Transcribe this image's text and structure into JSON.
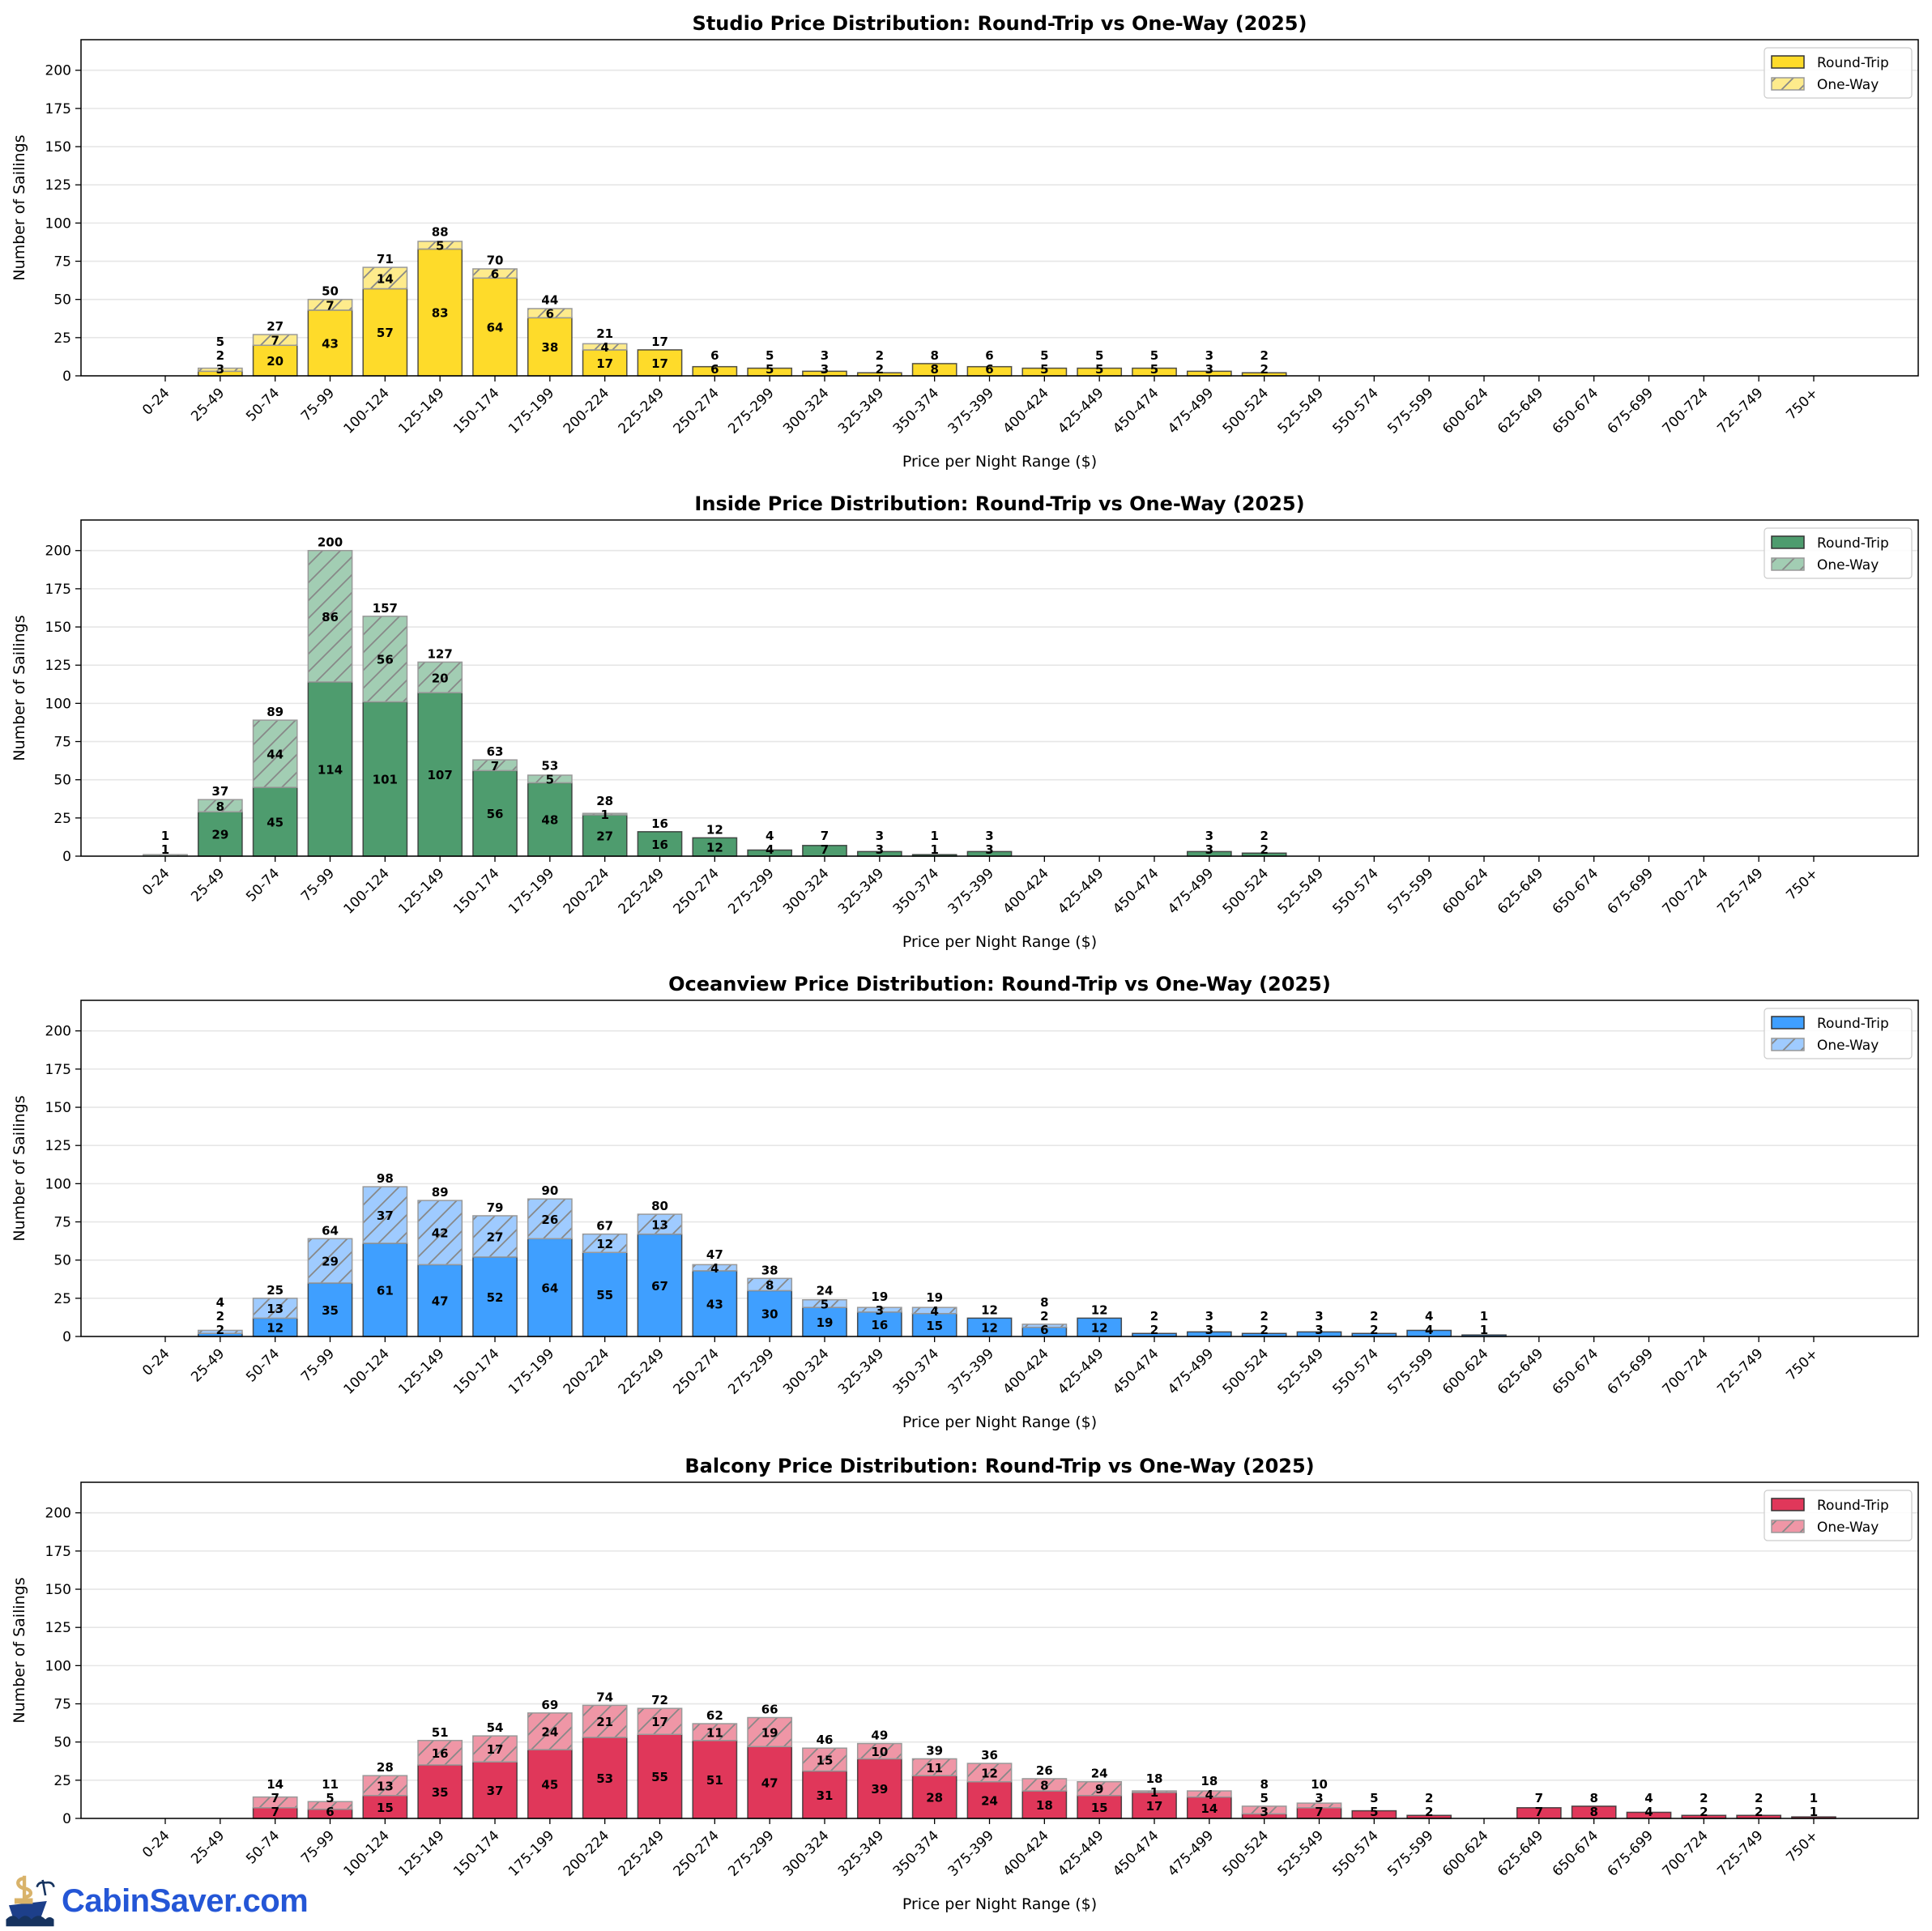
{
  "brand": {
    "logo_text": "CabinSaver.com"
  },
  "chart_data": [
    {
      "type": "bar",
      "stacked": true,
      "title": "Studio Price Distribution: Round-Trip vs One-Way (2025)",
      "xlabel": "Price per Night Range ($)",
      "ylabel": "Number of Sailings",
      "ylim": [
        0,
        220
      ],
      "yticks": [
        0,
        25,
        50,
        75,
        100,
        125,
        150,
        175,
        200
      ],
      "grid": true,
      "legend": "top-right",
      "colors": {
        "round_trip": "#fedb2a",
        "one_way": "#feeb8c"
      },
      "categories": [
        "0-24",
        "25-49",
        "50-74",
        "75-99",
        "100-124",
        "125-149",
        "150-174",
        "175-199",
        "200-224",
        "225-249",
        "250-274",
        "275-299",
        "300-324",
        "325-349",
        "350-374",
        "375-399",
        "400-424",
        "425-449",
        "450-474",
        "475-499",
        "500-524",
        "525-549",
        "550-574",
        "575-599",
        "600-624",
        "625-649",
        "650-674",
        "675-699",
        "700-724",
        "725-749",
        "750+"
      ],
      "series": [
        {
          "name": "Round-Trip",
          "values": [
            0,
            3,
            20,
            43,
            57,
            83,
            64,
            38,
            17,
            17,
            6,
            5,
            3,
            2,
            8,
            6,
            5,
            5,
            5,
            3,
            2,
            0,
            0,
            0,
            0,
            0,
            0,
            0,
            0,
            0,
            0
          ]
        },
        {
          "name": "One-Way",
          "values": [
            0,
            2,
            7,
            7,
            14,
            5,
            6,
            6,
            4,
            0,
            0,
            0,
            0,
            0,
            0,
            0,
            0,
            0,
            0,
            0,
            0,
            0,
            0,
            0,
            0,
            0,
            0,
            0,
            0,
            0,
            0
          ]
        }
      ]
    },
    {
      "type": "bar",
      "stacked": true,
      "title": "Inside Price Distribution: Round-Trip vs One-Way (2025)",
      "xlabel": "Price per Night Range ($)",
      "ylabel": "Number of Sailings",
      "ylim": [
        0,
        220
      ],
      "yticks": [
        0,
        25,
        50,
        75,
        100,
        125,
        150,
        175,
        200
      ],
      "grid": true,
      "legend": "top-right",
      "colors": {
        "round_trip": "#4e9c6e",
        "one_way": "#a2cdb3"
      },
      "categories": [
        "0-24",
        "25-49",
        "50-74",
        "75-99",
        "100-124",
        "125-149",
        "150-174",
        "175-199",
        "200-224",
        "225-249",
        "250-274",
        "275-299",
        "300-324",
        "325-349",
        "350-374",
        "375-399",
        "400-424",
        "425-449",
        "450-474",
        "475-499",
        "500-524",
        "525-549",
        "550-574",
        "575-599",
        "600-624",
        "625-649",
        "650-674",
        "675-699",
        "700-724",
        "725-749",
        "750+"
      ],
      "series": [
        {
          "name": "Round-Trip",
          "values": [
            0,
            29,
            45,
            114,
            101,
            107,
            56,
            48,
            27,
            16,
            12,
            4,
            7,
            3,
            1,
            3,
            0,
            0,
            0,
            3,
            2,
            0,
            0,
            0,
            0,
            0,
            0,
            0,
            0,
            0,
            0
          ]
        },
        {
          "name": "One-Way",
          "values": [
            1,
            8,
            44,
            86,
            56,
            20,
            7,
            5,
            1,
            0,
            0,
            0,
            0,
            0,
            0,
            0,
            0,
            0,
            0,
            0,
            0,
            0,
            0,
            0,
            0,
            0,
            0,
            0,
            0,
            0,
            0
          ]
        }
      ]
    },
    {
      "type": "bar",
      "stacked": true,
      "title": "Oceanview Price Distribution: Round-Trip vs One-Way (2025)",
      "xlabel": "Price per Night Range ($)",
      "ylabel": "Number of Sailings",
      "ylim": [
        0,
        220
      ],
      "yticks": [
        0,
        25,
        50,
        75,
        100,
        125,
        150,
        175,
        200
      ],
      "grid": true,
      "legend": "top-right",
      "colors": {
        "round_trip": "#3f9fff",
        "one_way": "#9fcbff"
      },
      "categories": [
        "0-24",
        "25-49",
        "50-74",
        "75-99",
        "100-124",
        "125-149",
        "150-174",
        "175-199",
        "200-224",
        "225-249",
        "250-274",
        "275-299",
        "300-324",
        "325-349",
        "350-374",
        "375-399",
        "400-424",
        "425-449",
        "450-474",
        "475-499",
        "500-524",
        "525-549",
        "550-574",
        "575-599",
        "600-624",
        "625-649",
        "650-674",
        "675-699",
        "700-724",
        "725-749",
        "750+"
      ],
      "series": [
        {
          "name": "Round-Trip",
          "values": [
            0,
            2,
            12,
            35,
            61,
            47,
            52,
            64,
            55,
            67,
            43,
            30,
            19,
            16,
            15,
            12,
            6,
            12,
            2,
            3,
            2,
            3,
            2,
            4,
            1,
            0,
            0,
            0,
            0,
            0,
            0
          ]
        },
        {
          "name": "One-Way",
          "values": [
            0,
            2,
            13,
            29,
            37,
            42,
            27,
            26,
            12,
            13,
            4,
            8,
            5,
            3,
            4,
            0,
            2,
            0,
            0,
            0,
            0,
            0,
            0,
            0,
            0,
            0,
            0,
            0,
            0,
            0,
            0
          ]
        }
      ]
    },
    {
      "type": "bar",
      "stacked": true,
      "title": "Balcony Price Distribution: Round-Trip vs One-Way (2025)",
      "xlabel": "Price per Night Range ($)",
      "ylabel": "Number of Sailings",
      "ylim": [
        0,
        220
      ],
      "yticks": [
        0,
        25,
        50,
        75,
        100,
        125,
        150,
        175,
        200
      ],
      "grid": true,
      "legend": "top-right",
      "colors": {
        "round_trip": "#e0375a",
        "one_way": "#ef96a6"
      },
      "categories": [
        "0-24",
        "25-49",
        "50-74",
        "75-99",
        "100-124",
        "125-149",
        "150-174",
        "175-199",
        "200-224",
        "225-249",
        "250-274",
        "275-299",
        "300-324",
        "325-349",
        "350-374",
        "375-399",
        "400-424",
        "425-449",
        "450-474",
        "475-499",
        "500-524",
        "525-549",
        "550-574",
        "575-599",
        "600-624",
        "625-649",
        "650-674",
        "675-699",
        "700-724",
        "725-749",
        "750+"
      ],
      "series": [
        {
          "name": "Round-Trip",
          "values": [
            0,
            0,
            7,
            6,
            15,
            35,
            37,
            45,
            53,
            55,
            51,
            47,
            31,
            39,
            28,
            24,
            18,
            15,
            17,
            14,
            3,
            7,
            5,
            2,
            0,
            7,
            8,
            4,
            2,
            2,
            1
          ]
        },
        {
          "name": "One-Way",
          "values": [
            0,
            0,
            7,
            5,
            13,
            16,
            17,
            24,
            21,
            17,
            11,
            19,
            15,
            10,
            11,
            12,
            8,
            9,
            1,
            4,
            5,
            3,
            0,
            0,
            0,
            0,
            0,
            0,
            0,
            0,
            0
          ]
        }
      ]
    }
  ]
}
